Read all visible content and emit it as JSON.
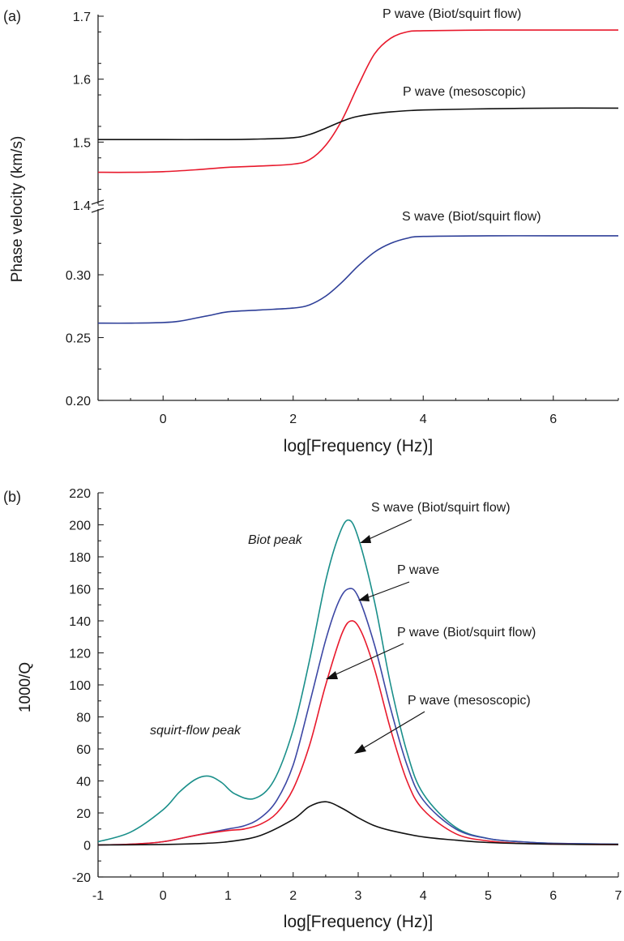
{
  "chart_data": [
    {
      "panel": "(a)",
      "type": "line",
      "xlabel": "log[Frequency (Hz)]",
      "ylabel": "Phase velocity (km/s)",
      "xlim": [
        -1,
        7
      ],
      "x_ticks": [
        0,
        2,
        4,
        6
      ],
      "axis_break": "between 1.4 and 0.30",
      "upper_ylim": [
        1.4,
        1.7
      ],
      "upper_ticks": [
        1.4,
        1.5,
        1.6,
        1.7
      ],
      "lower_ylim": [
        0.2,
        0.33
      ],
      "lower_ticks": [
        0.2,
        0.25,
        0.3
      ],
      "series": [
        {
          "name": "P wave (Biot/squirt flow)",
          "color": "#e8192c",
          "axis": "upper",
          "x": [
            -1,
            -0.5,
            0,
            0.5,
            1,
            1.5,
            2,
            2.25,
            2.5,
            2.75,
            3,
            3.25,
            3.5,
            3.75,
            4,
            5,
            6,
            7
          ],
          "y": [
            1.452,
            1.452,
            1.453,
            1.456,
            1.46,
            1.462,
            1.465,
            1.472,
            1.495,
            1.535,
            1.59,
            1.64,
            1.665,
            1.675,
            1.677,
            1.678,
            1.678,
            1.678
          ]
        },
        {
          "name": "P wave (mesoscopic)",
          "color": "#111111",
          "axis": "upper",
          "x": [
            -1,
            0,
            1,
            1.5,
            2,
            2.25,
            2.5,
            2.75,
            3,
            3.5,
            4,
            5,
            6,
            7
          ],
          "y": [
            1.504,
            1.504,
            1.504,
            1.505,
            1.507,
            1.512,
            1.522,
            1.533,
            1.541,
            1.548,
            1.551,
            1.553,
            1.554,
            1.554
          ]
        },
        {
          "name": "S wave (Biot/squirt flow)",
          "color": "#2e3f98",
          "axis": "lower",
          "x": [
            -1,
            -0.5,
            0,
            0.25,
            0.5,
            0.75,
            1,
            1.5,
            2,
            2.25,
            2.5,
            2.75,
            3,
            3.25,
            3.5,
            3.75,
            4,
            5,
            6,
            7
          ],
          "y": [
            0.2615,
            0.2615,
            0.262,
            0.263,
            0.2655,
            0.268,
            0.2705,
            0.272,
            0.2735,
            0.276,
            0.283,
            0.294,
            0.307,
            0.318,
            0.325,
            0.329,
            0.3305,
            0.331,
            0.331,
            0.331
          ]
        }
      ],
      "annotations": [
        "P wave (Biot/squirt flow)",
        "P wave (mesoscopic)",
        "S wave (Biot/squirt flow)"
      ]
    },
    {
      "panel": "(b)",
      "type": "line",
      "xlabel": "log[Frequency (Hz)]",
      "ylabel": "1000/Q",
      "xlim": [
        -1,
        7
      ],
      "ylim": [
        -20,
        220
      ],
      "x_ticks": [
        -1,
        0,
        1,
        2,
        3,
        4,
        5,
        6,
        7
      ],
      "y_ticks": [
        -20,
        0,
        20,
        40,
        60,
        80,
        100,
        120,
        140,
        160,
        180,
        200,
        220
      ],
      "series": [
        {
          "name": "S wave (Biot/squirt flow)",
          "color": "#1a8f8a",
          "x": [
            -1,
            -0.5,
            0,
            0.25,
            0.5,
            0.7,
            0.9,
            1.1,
            1.4,
            1.7,
            2,
            2.25,
            2.5,
            2.7,
            2.85,
            3,
            3.25,
            3.5,
            3.75,
            4,
            4.5,
            5,
            5.5,
            6,
            7
          ],
          "y": [
            2,
            8,
            22,
            33,
            41,
            43,
            39,
            32,
            29,
            40,
            72,
            115,
            165,
            193,
            203,
            192,
            152,
            100,
            58,
            32,
            11,
            4,
            2,
            1,
            0.5
          ]
        },
        {
          "name": "P wave",
          "color": "#3c47a4",
          "x": [
            -1,
            -0.5,
            0,
            0.5,
            1,
            1.25,
            1.5,
            1.75,
            2,
            2.25,
            2.5,
            2.7,
            2.85,
            3,
            3.25,
            3.5,
            3.75,
            4,
            4.5,
            5,
            5.5,
            6,
            7
          ],
          "y": [
            0,
            0.5,
            2,
            6,
            10,
            12,
            17,
            28,
            50,
            88,
            128,
            152,
            160,
            155,
            125,
            85,
            50,
            28,
            10,
            4,
            2,
            1,
            0.5
          ]
        },
        {
          "name": "P wave (Biot/squirt flow)",
          "color": "#e8192c",
          "x": [
            -1,
            -0.5,
            0,
            0.5,
            1,
            1.25,
            1.5,
            1.75,
            2,
            2.25,
            2.5,
            2.75,
            2.9,
            3.05,
            3.25,
            3.5,
            3.75,
            4,
            4.5,
            5,
            5.5,
            6,
            7
          ],
          "y": [
            0,
            0.5,
            2,
            6,
            9,
            10,
            13,
            20,
            35,
            62,
            100,
            132,
            140,
            133,
            110,
            72,
            40,
            22,
            7,
            2.5,
            1,
            0.5,
            0.2
          ]
        },
        {
          "name": "P wave (mesoscopic)",
          "color": "#111111",
          "x": [
            -1,
            -0.5,
            0,
            0.5,
            1,
            1.5,
            2,
            2.25,
            2.5,
            2.75,
            3,
            3.25,
            3.5,
            4,
            4.5,
            5,
            6,
            7
          ],
          "y": [
            0,
            0.1,
            0.3,
            0.8,
            2,
            6,
            16,
            24,
            27,
            23,
            17,
            12,
            9,
            5,
            3,
            1.5,
            0.5,
            0.2
          ]
        }
      ],
      "annotations": {
        "biot_peak": "Biot peak",
        "squirt_peak": "squirt-flow peak",
        "s_wave": "S wave (Biot/squirt flow)",
        "p_wave": "P wave",
        "p_wave_biot": "P wave  (Biot/squirt flow)",
        "p_wave_meso": "P wave (mesoscopic)"
      }
    }
  ]
}
